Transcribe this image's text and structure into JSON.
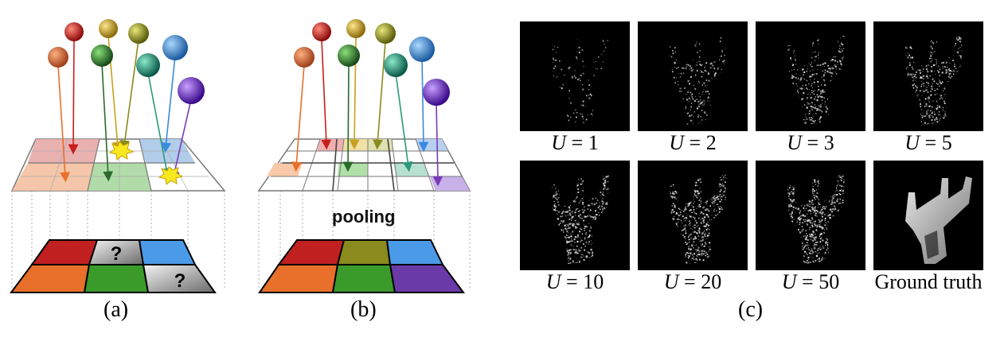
{
  "panels": {
    "a": {
      "caption": "(a)",
      "question_marks": [
        "?",
        "?"
      ]
    },
    "b": {
      "caption": "(b)",
      "pooling_label": "pooling"
    },
    "c": {
      "caption": "(c)"
    }
  },
  "results": {
    "tiles": [
      {
        "var": "U",
        "value": "1",
        "density": 0.12
      },
      {
        "var": "U",
        "value": "2",
        "density": 0.28
      },
      {
        "var": "U",
        "value": "3",
        "density": 0.45
      },
      {
        "var": "U",
        "value": "5",
        "density": 0.6
      },
      {
        "var": "U",
        "value": "10",
        "density": 0.72
      },
      {
        "var": "U",
        "value": "20",
        "density": 0.82
      },
      {
        "var": "U",
        "value": "50",
        "density": 0.9
      },
      {
        "label": "Ground truth",
        "density": 1.0
      }
    ]
  },
  "colors": {
    "red": "#c81e1e",
    "orange": "#e8702a",
    "olive": "#8a8a1e",
    "green": "#3a9a2a",
    "blue": "#4a9ae8",
    "purple": "#7a3ab8",
    "teal": "#2a9a7a",
    "gold": "#d4a020",
    "yellowgreen": "#9aa020"
  }
}
